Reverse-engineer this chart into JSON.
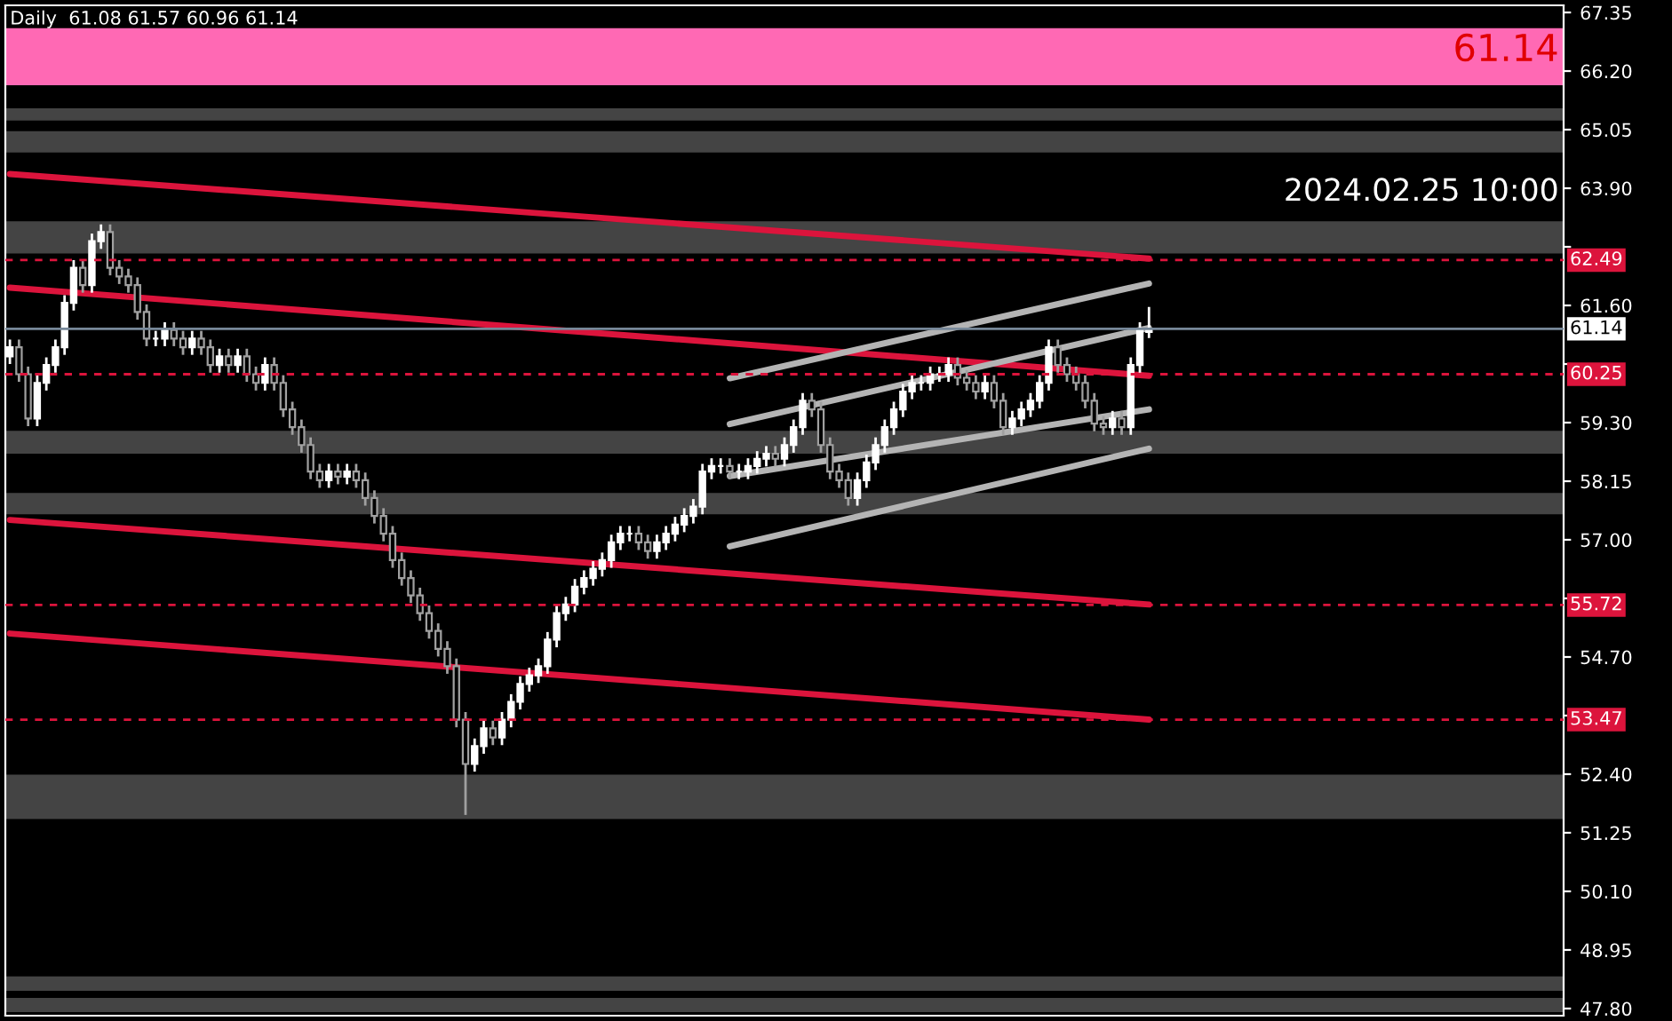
{
  "chart_data": {
    "type": "candlestick",
    "title": "Daily  61.08 61.57 60.96 61.14",
    "annotations": [
      "61.14",
      "2024.02.25 10:00"
    ],
    "categories": [
      null,
      null,
      null,
      null,
      null,
      null,
      null,
      null,
      null,
      null,
      null,
      null,
      null,
      null,
      null,
      null,
      null,
      null,
      null,
      null,
      null,
      null,
      null,
      null,
      null,
      null,
      null,
      null,
      null,
      null,
      null,
      null,
      null,
      null,
      null,
      null,
      null,
      null,
      null,
      null,
      null,
      null,
      null,
      null,
      null,
      null,
      null,
      null,
      null,
      null,
      null,
      null,
      null,
      null,
      null,
      null,
      null,
      null,
      null,
      null,
      null,
      null,
      null,
      null,
      null,
      null,
      null,
      null,
      null,
      null,
      null,
      null,
      null,
      null,
      null,
      null,
      null,
      null,
      null,
      null,
      null,
      null,
      null,
      null,
      null,
      null,
      null,
      null,
      null,
      null,
      null,
      null,
      null,
      null,
      null,
      null,
      null,
      null,
      null,
      null,
      null,
      null,
      null,
      null,
      null,
      null,
      null,
      null,
      null,
      null,
      null,
      null,
      null,
      null,
      null,
      null,
      null,
      null,
      null,
      null,
      null,
      null,
      null,
      null,
      null,
      null,
      null,
      null,
      null,
      null,
      null,
      null,
      null,
      null,
      null,
      null,
      null,
      null,
      null,
      null,
      null,
      null,
      null,
      null,
      null,
      null,
      null,
      null,
      null,
      null,
      null,
      null,
      null,
      null,
      null,
      null,
      null,
      null,
      null,
      null,
      null,
      null,
      null,
      null,
      null,
      null,
      null,
      null,
      null,
      null,
      null
    ],
    "ohlc": [
      [
        60.6,
        60.93,
        60.45,
        60.78
      ],
      [
        60.78,
        60.93,
        60.1,
        60.25
      ],
      [
        60.25,
        60.4,
        59.23,
        59.38
      ],
      [
        59.38,
        60.23,
        59.23,
        60.08
      ],
      [
        60.08,
        60.58,
        59.93,
        60.43
      ],
      [
        60.43,
        60.93,
        60.28,
        60.78
      ],
      [
        60.78,
        61.8,
        60.63,
        61.65
      ],
      [
        61.65,
        62.49,
        61.5,
        62.34
      ],
      [
        62.34,
        62.49,
        61.85,
        62.0
      ],
      [
        62.0,
        63.01,
        61.85,
        62.86
      ],
      [
        62.86,
        63.19,
        62.71,
        63.04
      ],
      [
        63.04,
        63.19,
        62.19,
        62.34
      ],
      [
        62.34,
        62.49,
        62.02,
        62.17
      ],
      [
        62.17,
        62.32,
        61.85,
        62.0
      ],
      [
        62.0,
        62.15,
        61.32,
        61.47
      ],
      [
        61.47,
        61.62,
        60.8,
        60.95
      ],
      [
        60.95,
        61.1,
        60.8,
        60.95
      ],
      [
        60.95,
        61.27,
        60.8,
        61.12
      ],
      [
        61.12,
        61.27,
        60.8,
        60.95
      ],
      [
        60.95,
        61.1,
        60.63,
        60.78
      ],
      [
        60.78,
        61.1,
        60.63,
        60.95
      ],
      [
        60.95,
        61.1,
        60.63,
        60.78
      ],
      [
        60.78,
        60.93,
        60.28,
        60.43
      ],
      [
        60.43,
        60.75,
        60.28,
        60.6
      ],
      [
        60.6,
        60.75,
        60.28,
        60.43
      ],
      [
        60.43,
        60.75,
        60.28,
        60.6
      ],
      [
        60.6,
        60.75,
        60.1,
        60.25
      ],
      [
        60.25,
        60.4,
        59.93,
        60.08
      ],
      [
        60.08,
        60.58,
        59.93,
        60.43
      ],
      [
        60.43,
        60.58,
        59.93,
        60.08
      ],
      [
        60.08,
        60.23,
        59.41,
        59.56
      ],
      [
        59.56,
        59.71,
        59.06,
        59.21
      ],
      [
        59.21,
        59.36,
        58.71,
        58.86
      ],
      [
        58.86,
        59.01,
        58.19,
        58.34
      ],
      [
        58.34,
        58.49,
        58.02,
        58.17
      ],
      [
        58.17,
        58.49,
        58.02,
        58.34
      ],
      [
        58.34,
        58.49,
        58.09,
        58.24
      ],
      [
        58.24,
        58.49,
        58.09,
        58.34
      ],
      [
        58.34,
        58.49,
        58.02,
        58.17
      ],
      [
        58.17,
        58.32,
        57.67,
        57.82
      ],
      [
        57.82,
        57.97,
        57.32,
        57.47
      ],
      [
        57.47,
        57.62,
        56.97,
        57.12
      ],
      [
        57.12,
        57.27,
        56.45,
        56.6
      ],
      [
        56.6,
        56.75,
        56.1,
        56.25
      ],
      [
        56.25,
        56.4,
        55.76,
        55.91
      ],
      [
        55.91,
        56.06,
        55.41,
        55.56
      ],
      [
        55.56,
        55.71,
        55.06,
        55.21
      ],
      [
        55.21,
        55.36,
        54.71,
        54.86
      ],
      [
        54.86,
        55.01,
        54.37,
        54.52
      ],
      [
        54.52,
        54.67,
        53.32,
        53.47
      ],
      [
        53.47,
        53.62,
        51.6,
        52.6
      ],
      [
        52.6,
        53.1,
        52.45,
        52.95
      ],
      [
        52.95,
        53.45,
        52.8,
        53.3
      ],
      [
        53.3,
        53.45,
        52.97,
        53.12
      ],
      [
        53.12,
        53.62,
        52.97,
        53.47
      ],
      [
        53.47,
        53.97,
        53.32,
        53.82
      ],
      [
        53.82,
        54.32,
        53.67,
        54.17
      ],
      [
        54.17,
        54.49,
        54.02,
        54.34
      ],
      [
        54.34,
        54.67,
        54.19,
        54.52
      ],
      [
        54.52,
        55.19,
        54.37,
        55.04
      ],
      [
        55.04,
        55.71,
        54.89,
        55.56
      ],
      [
        55.56,
        55.88,
        55.41,
        55.73
      ],
      [
        55.73,
        56.23,
        55.58,
        56.08
      ],
      [
        56.08,
        56.4,
        55.93,
        56.25
      ],
      [
        56.25,
        56.58,
        56.1,
        56.43
      ],
      [
        56.43,
        56.75,
        56.28,
        56.6
      ],
      [
        56.6,
        57.1,
        56.45,
        56.95
      ],
      [
        56.95,
        57.27,
        56.8,
        57.12
      ],
      [
        57.12,
        57.27,
        56.97,
        57.12
      ],
      [
        57.12,
        57.27,
        56.8,
        56.95
      ],
      [
        56.95,
        57.1,
        56.63,
        56.78
      ],
      [
        56.78,
        57.1,
        56.63,
        56.95
      ],
      [
        56.95,
        57.27,
        56.8,
        57.12
      ],
      [
        57.12,
        57.45,
        56.97,
        57.3
      ],
      [
        57.3,
        57.62,
        57.15,
        57.47
      ],
      [
        57.47,
        57.8,
        57.32,
        57.65
      ],
      [
        57.65,
        58.49,
        57.5,
        58.34
      ],
      [
        58.34,
        58.6,
        58.19,
        58.45
      ],
      [
        58.45,
        58.6,
        58.3,
        58.45
      ],
      [
        58.45,
        58.6,
        58.19,
        58.34
      ],
      [
        58.34,
        58.49,
        58.19,
        58.34
      ],
      [
        58.34,
        58.6,
        58.19,
        58.45
      ],
      [
        58.45,
        58.74,
        58.3,
        58.59
      ],
      [
        58.59,
        58.84,
        58.44,
        58.69
      ],
      [
        58.69,
        58.84,
        58.44,
        58.59
      ],
      [
        58.59,
        59.01,
        58.44,
        58.86
      ],
      [
        58.86,
        59.36,
        58.71,
        59.21
      ],
      [
        59.21,
        59.88,
        59.06,
        59.73
      ],
      [
        59.73,
        59.88,
        59.41,
        59.56
      ],
      [
        59.56,
        59.71,
        58.71,
        58.86
      ],
      [
        58.86,
        59.01,
        58.19,
        58.34
      ],
      [
        58.34,
        58.49,
        58.02,
        58.17
      ],
      [
        58.17,
        58.32,
        57.67,
        57.82
      ],
      [
        57.82,
        58.32,
        57.67,
        58.17
      ],
      [
        58.17,
        58.67,
        58.02,
        58.52
      ],
      [
        58.52,
        59.01,
        58.37,
        58.86
      ],
      [
        58.86,
        59.36,
        58.71,
        59.21
      ],
      [
        59.21,
        59.71,
        59.06,
        59.56
      ],
      [
        59.56,
        60.06,
        59.41,
        59.91
      ],
      [
        59.91,
        60.23,
        59.76,
        60.08
      ],
      [
        60.08,
        60.23,
        59.93,
        60.08
      ],
      [
        60.08,
        60.4,
        59.93,
        60.25
      ],
      [
        60.25,
        60.4,
        60.1,
        60.25
      ],
      [
        60.25,
        60.58,
        60.1,
        60.43
      ],
      [
        60.43,
        60.58,
        60.03,
        60.18
      ],
      [
        60.18,
        60.33,
        59.93,
        60.08
      ],
      [
        60.08,
        60.23,
        59.76,
        59.91
      ],
      [
        59.91,
        60.23,
        59.76,
        60.08
      ],
      [
        60.08,
        60.23,
        59.58,
        59.73
      ],
      [
        59.73,
        59.88,
        59.06,
        59.21
      ],
      [
        59.21,
        59.53,
        59.06,
        59.38
      ],
      [
        59.38,
        59.71,
        59.23,
        59.56
      ],
      [
        59.56,
        59.88,
        59.41,
        59.73
      ],
      [
        59.73,
        60.23,
        59.58,
        60.08
      ],
      [
        60.08,
        60.93,
        59.93,
        60.78
      ],
      [
        60.78,
        60.93,
        60.28,
        60.43
      ],
      [
        60.43,
        60.58,
        60.1,
        60.25
      ],
      [
        60.25,
        60.4,
        59.93,
        60.08
      ],
      [
        60.08,
        60.23,
        59.58,
        59.73
      ],
      [
        59.73,
        59.88,
        59.13,
        59.28
      ],
      [
        59.28,
        59.43,
        59.06,
        59.21
      ],
      [
        59.21,
        59.53,
        59.06,
        59.38
      ],
      [
        59.38,
        59.53,
        59.06,
        59.21
      ],
      [
        59.21,
        60.58,
        59.06,
        60.43
      ],
      [
        60.43,
        61.27,
        60.28,
        61.12
      ],
      [
        61.08,
        61.57,
        60.96,
        61.14
      ],
      null,
      null,
      null,
      null,
      null,
      null,
      null,
      null,
      null,
      null,
      null,
      null,
      null,
      null,
      null,
      null,
      null,
      null,
      null,
      null,
      null,
      null,
      null,
      null,
      null,
      null,
      null,
      null,
      null,
      null,
      null,
      null,
      null,
      null,
      null,
      null,
      null,
      null,
      null,
      null,
      null,
      null,
      null,
      null,
      null
    ],
    "series": [
      {
        "type": "line",
        "color": "#dc143c",
        "values": [
          64.18,
          null,
          null,
          null,
          null,
          null,
          null,
          null,
          null,
          null,
          null,
          null,
          null,
          null,
          null,
          null,
          null,
          null,
          null,
          null,
          null,
          null,
          null,
          null,
          null,
          null,
          null,
          null,
          null,
          null,
          null,
          null,
          null,
          null,
          null,
          null,
          null,
          null,
          null,
          null,
          null,
          null,
          null,
          null,
          null,
          null,
          null,
          null,
          null,
          null,
          null,
          null,
          null,
          null,
          null,
          null,
          null,
          null,
          null,
          null,
          null,
          null,
          null,
          null,
          null,
          null,
          null,
          null,
          null,
          null,
          null,
          null,
          null,
          null,
          null,
          null,
          null,
          null,
          null,
          null,
          null,
          null,
          null,
          null,
          null,
          null,
          null,
          null,
          null,
          null,
          null,
          null,
          null,
          null,
          null,
          null,
          null,
          null,
          null,
          null,
          null,
          null,
          null,
          null,
          null,
          null,
          null,
          null,
          null,
          null,
          null,
          null,
          null,
          null,
          null,
          null,
          null,
          null,
          null,
          null,
          null,
          null,
          null,
          null,
          null,
          62.52,
          null,
          null,
          null,
          null,
          null,
          null,
          null,
          null,
          null,
          null,
          null,
          null,
          null,
          null,
          null,
          null,
          null,
          null,
          null,
          null,
          null,
          null,
          null,
          null,
          null,
          null,
          null,
          null,
          null,
          null,
          null,
          null,
          null,
          null,
          null,
          null,
          null,
          null,
          null,
          null,
          null,
          null,
          null,
          null,
          null
        ]
      },
      {
        "type": "line",
        "color": "#dc143c",
        "values": [
          61.95,
          null,
          null,
          null,
          null,
          null,
          null,
          null,
          null,
          null,
          null,
          null,
          null,
          null,
          null,
          null,
          null,
          null,
          null,
          null,
          null,
          null,
          null,
          null,
          null,
          null,
          null,
          null,
          null,
          null,
          null,
          null,
          null,
          null,
          null,
          null,
          null,
          null,
          null,
          null,
          null,
          null,
          null,
          null,
          null,
          null,
          null,
          null,
          null,
          null,
          null,
          null,
          null,
          null,
          null,
          null,
          null,
          null,
          null,
          null,
          null,
          null,
          null,
          null,
          null,
          null,
          null,
          null,
          null,
          null,
          null,
          null,
          null,
          null,
          null,
          null,
          null,
          null,
          null,
          null,
          null,
          null,
          null,
          null,
          null,
          null,
          null,
          null,
          null,
          null,
          null,
          null,
          null,
          null,
          null,
          null,
          null,
          null,
          null,
          null,
          null,
          null,
          null,
          null,
          null,
          null,
          null,
          null,
          null,
          null,
          null,
          null,
          null,
          null,
          null,
          null,
          null,
          null,
          null,
          null,
          null,
          null,
          null,
          null,
          null,
          60.22,
          null,
          null,
          null,
          null,
          null,
          null,
          null,
          null,
          null,
          null,
          null,
          null,
          null,
          null,
          null,
          null,
          null,
          null,
          null,
          null,
          null,
          null,
          null,
          null,
          null,
          null,
          null,
          null,
          null,
          null,
          null,
          null,
          null,
          null,
          null,
          null,
          null,
          null,
          null,
          null,
          null,
          null,
          null,
          null,
          null
        ]
      },
      {
        "type": "line",
        "color": "#dc143c",
        "values": [
          57.39,
          null,
          null,
          null,
          null,
          null,
          null,
          null,
          null,
          null,
          null,
          null,
          null,
          null,
          null,
          null,
          null,
          null,
          null,
          null,
          null,
          null,
          null,
          null,
          null,
          null,
          null,
          null,
          null,
          null,
          null,
          null,
          null,
          null,
          null,
          null,
          null,
          null,
          null,
          null,
          null,
          null,
          null,
          null,
          null,
          null,
          null,
          null,
          null,
          null,
          null,
          null,
          null,
          null,
          null,
          null,
          null,
          null,
          null,
          null,
          null,
          null,
          null,
          null,
          null,
          null,
          null,
          null,
          null,
          null,
          null,
          null,
          null,
          null,
          null,
          null,
          null,
          null,
          null,
          null,
          null,
          null,
          null,
          null,
          null,
          null,
          null,
          null,
          null,
          null,
          null,
          null,
          null,
          null,
          null,
          null,
          null,
          null,
          null,
          null,
          null,
          null,
          null,
          null,
          null,
          null,
          null,
          null,
          null,
          null,
          null,
          null,
          null,
          null,
          null,
          null,
          null,
          null,
          null,
          null,
          null,
          null,
          null,
          null,
          null,
          55.73,
          null,
          null,
          null,
          null,
          null,
          null,
          null,
          null,
          null,
          null,
          null,
          null,
          null,
          null,
          null,
          null,
          null,
          null,
          null,
          null,
          null,
          null,
          null,
          null,
          null,
          null,
          null,
          null,
          null,
          null,
          null,
          null,
          null,
          null,
          null,
          null,
          null,
          null,
          null,
          null,
          null,
          null,
          null,
          null,
          null
        ]
      },
      {
        "type": "line",
        "color": "#dc143c",
        "values": [
          55.16,
          null,
          null,
          null,
          null,
          null,
          null,
          null,
          null,
          null,
          null,
          null,
          null,
          null,
          null,
          null,
          null,
          null,
          null,
          null,
          null,
          null,
          null,
          null,
          null,
          null,
          null,
          null,
          null,
          null,
          null,
          null,
          null,
          null,
          null,
          null,
          null,
          null,
          null,
          null,
          null,
          null,
          null,
          null,
          null,
          null,
          null,
          null,
          null,
          null,
          null,
          null,
          null,
          null,
          null,
          null,
          null,
          null,
          null,
          null,
          null,
          null,
          null,
          null,
          null,
          null,
          null,
          null,
          null,
          null,
          null,
          null,
          null,
          null,
          null,
          null,
          null,
          null,
          null,
          null,
          null,
          null,
          null,
          null,
          null,
          null,
          null,
          null,
          null,
          null,
          null,
          null,
          null,
          null,
          null,
          null,
          null,
          null,
          null,
          null,
          null,
          null,
          null,
          null,
          null,
          null,
          null,
          null,
          null,
          null,
          null,
          null,
          null,
          null,
          null,
          null,
          null,
          null,
          null,
          null,
          null,
          null,
          null,
          null,
          null,
          53.47,
          null,
          null,
          null,
          null,
          null,
          null,
          null,
          null,
          null,
          null,
          null,
          null,
          null,
          null,
          null,
          null,
          null,
          null,
          null,
          null,
          null,
          null,
          null,
          null,
          null,
          null,
          null,
          null,
          null,
          null,
          null,
          null,
          null,
          null,
          null,
          null,
          null,
          null,
          null,
          null,
          null,
          null,
          null,
          null,
          null
        ]
      },
      {
        "type": "line",
        "color": "#b4b4b4",
        "values": [
          null,
          null,
          null,
          null,
          null,
          null,
          null,
          null,
          null,
          null,
          null,
          null,
          null,
          null,
          null,
          null,
          null,
          null,
          null,
          null,
          null,
          null,
          null,
          null,
          null,
          null,
          null,
          null,
          null,
          null,
          null,
          null,
          null,
          null,
          null,
          null,
          null,
          null,
          null,
          null,
          null,
          null,
          null,
          null,
          null,
          null,
          null,
          null,
          null,
          null,
          null,
          null,
          null,
          null,
          null,
          null,
          null,
          null,
          null,
          null,
          null,
          null,
          null,
          null,
          null,
          null,
          null,
          null,
          null,
          null,
          null,
          null,
          null,
          null,
          null,
          null,
          null,
          null,
          null,
          60.17,
          null,
          null,
          null,
          null,
          null,
          null,
          null,
          null,
          null,
          null,
          null,
          null,
          null,
          null,
          null,
          null,
          null,
          null,
          null,
          null,
          null,
          null,
          null,
          null,
          null,
          null,
          null,
          null,
          null,
          null,
          null,
          null,
          null,
          null,
          null,
          null,
          null,
          null,
          null,
          null,
          null,
          null,
          null,
          null,
          null,
          62.03,
          null,
          null,
          null,
          null,
          null,
          null,
          null,
          null,
          null,
          null,
          null,
          null,
          null,
          null,
          null,
          null,
          null,
          null,
          null,
          null,
          null,
          null,
          null,
          null,
          null,
          null,
          null,
          null,
          null,
          null,
          null,
          null,
          null,
          null,
          null,
          null,
          null,
          null,
          null,
          null,
          null,
          null,
          null,
          null,
          null
        ]
      },
      {
        "type": "line",
        "color": "#b4b4b4",
        "values": [
          null,
          null,
          null,
          null,
          null,
          null,
          null,
          null,
          null,
          null,
          null,
          null,
          null,
          null,
          null,
          null,
          null,
          null,
          null,
          null,
          null,
          null,
          null,
          null,
          null,
          null,
          null,
          null,
          null,
          null,
          null,
          null,
          null,
          null,
          null,
          null,
          null,
          null,
          null,
          null,
          null,
          null,
          null,
          null,
          null,
          null,
          null,
          null,
          null,
          null,
          null,
          null,
          null,
          null,
          null,
          null,
          null,
          null,
          null,
          null,
          null,
          null,
          null,
          null,
          null,
          null,
          null,
          null,
          null,
          null,
          null,
          null,
          null,
          null,
          null,
          null,
          null,
          null,
          null,
          59.27,
          null,
          null,
          null,
          null,
          null,
          null,
          null,
          null,
          null,
          null,
          null,
          null,
          null,
          null,
          null,
          null,
          null,
          null,
          null,
          null,
          null,
          null,
          null,
          null,
          null,
          null,
          null,
          null,
          null,
          null,
          null,
          null,
          null,
          null,
          null,
          null,
          null,
          null,
          null,
          null,
          null,
          null,
          null,
          null,
          null,
          61.16,
          null,
          null,
          null,
          null,
          null,
          null,
          null,
          null,
          null,
          null,
          null,
          null,
          null,
          null,
          null,
          null,
          null,
          null,
          null,
          null,
          null,
          null,
          null,
          null,
          null,
          null,
          null,
          null,
          null,
          null,
          null,
          null,
          null,
          null,
          null,
          null,
          null,
          null,
          null,
          null,
          null,
          null,
          null,
          null,
          null
        ]
      },
      {
        "type": "line",
        "color": "#b4b4b4",
        "values": [
          null,
          null,
          null,
          null,
          null,
          null,
          null,
          null,
          null,
          null,
          null,
          null,
          null,
          null,
          null,
          null,
          null,
          null,
          null,
          null,
          null,
          null,
          null,
          null,
          null,
          null,
          null,
          null,
          null,
          null,
          null,
          null,
          null,
          null,
          null,
          null,
          null,
          null,
          null,
          null,
          null,
          null,
          null,
          null,
          null,
          null,
          null,
          null,
          null,
          null,
          null,
          null,
          null,
          null,
          null,
          null,
          null,
          null,
          null,
          null,
          null,
          null,
          null,
          null,
          null,
          null,
          null,
          null,
          null,
          null,
          null,
          null,
          null,
          null,
          null,
          null,
          null,
          null,
          null,
          58.25,
          null,
          null,
          null,
          null,
          null,
          null,
          null,
          null,
          null,
          null,
          null,
          null,
          null,
          null,
          null,
          null,
          null,
          null,
          null,
          null,
          null,
          null,
          null,
          null,
          null,
          null,
          null,
          null,
          null,
          null,
          null,
          null,
          null,
          null,
          null,
          null,
          null,
          null,
          null,
          null,
          null,
          null,
          null,
          null,
          null,
          59.56,
          null,
          null,
          null,
          null,
          null,
          null,
          null,
          null,
          null,
          null,
          null,
          null,
          null,
          null,
          null,
          null,
          null,
          null,
          null,
          null,
          null,
          null,
          null,
          null,
          null,
          null,
          null,
          null,
          null,
          null,
          null,
          null,
          null,
          null,
          null,
          null,
          null,
          null,
          null,
          null,
          null,
          null,
          null,
          null,
          null
        ]
      },
      {
        "type": "line",
        "color": "#b4b4b4",
        "values": [
          null,
          null,
          null,
          null,
          null,
          null,
          null,
          null,
          null,
          null,
          null,
          null,
          null,
          null,
          null,
          null,
          null,
          null,
          null,
          null,
          null,
          null,
          null,
          null,
          null,
          null,
          null,
          null,
          null,
          null,
          null,
          null,
          null,
          null,
          null,
          null,
          null,
          null,
          null,
          null,
          null,
          null,
          null,
          null,
          null,
          null,
          null,
          null,
          null,
          null,
          null,
          null,
          null,
          null,
          null,
          null,
          null,
          null,
          null,
          null,
          null,
          null,
          null,
          null,
          null,
          null,
          null,
          null,
          null,
          null,
          null,
          null,
          null,
          null,
          null,
          null,
          null,
          null,
          null,
          56.87,
          null,
          null,
          null,
          null,
          null,
          null,
          null,
          null,
          null,
          null,
          null,
          null,
          null,
          null,
          null,
          null,
          null,
          null,
          null,
          null,
          null,
          null,
          null,
          null,
          null,
          null,
          null,
          null,
          null,
          null,
          null,
          null,
          null,
          null,
          null,
          null,
          null,
          null,
          null,
          null,
          null,
          null,
          null,
          null,
          null,
          58.79,
          null,
          null,
          null,
          null,
          null,
          null,
          null,
          null,
          null,
          null,
          null,
          null,
          null,
          null,
          null,
          null,
          null,
          null,
          null,
          null,
          null,
          null,
          null,
          null,
          null,
          null,
          null,
          null,
          null,
          null,
          null,
          null,
          null,
          null,
          null,
          null,
          null,
          null,
          null,
          null,
          null,
          null,
          null,
          null,
          null
        ]
      }
    ],
    "ref_lines": [
      {
        "axis": "y",
        "value": 62.49,
        "label": "62.49",
        "color": "#dc143c",
        "line_style": "dashed"
      },
      {
        "axis": "y",
        "value": 61.14,
        "label": "61.14",
        "color": "#778899",
        "line_style": "solid"
      },
      {
        "axis": "y",
        "value": 60.25,
        "label": "60.25",
        "color": "#dc143c",
        "line_style": "dashed"
      },
      {
        "axis": "y",
        "value": 55.72,
        "label": "55.72",
        "color": "#dc143c",
        "line_style": "dashed"
      },
      {
        "axis": "y",
        "value": 53.47,
        "label": "53.47",
        "color": "#dc143c",
        "line_style": "dashed"
      }
    ],
    "bands": [
      {
        "axis": "y",
        "from": 65.92,
        "to": 67.04,
        "color": "#ff69b4"
      },
      {
        "axis": "y",
        "from": 65.23,
        "to": 65.47,
        "color": "#444444"
      },
      {
        "axis": "y",
        "from": 64.6,
        "to": 65.02,
        "color": "#444444"
      },
      {
        "axis": "y",
        "from": 62.62,
        "to": 63.25,
        "color": "#444444"
      },
      {
        "axis": "y",
        "from": 58.69,
        "to": 59.14,
        "color": "#444444"
      },
      {
        "axis": "y",
        "from": 57.5,
        "to": 57.92,
        "color": "#444444"
      },
      {
        "axis": "y",
        "from": 51.52,
        "to": 52.39,
        "color": "#444444"
      },
      {
        "axis": "y",
        "from": 48.15,
        "to": 48.43,
        "color": "#444444"
      },
      {
        "axis": "y",
        "from": 47.73,
        "to": 48.01,
        "color": "#444444"
      }
    ],
    "ylim": [
      47.66,
      67.49
    ],
    "yticks": [
      67.35,
      {
        "value": 66.2,
        "label": "66.20"
      },
      65.05,
      {
        "value": 63.9,
        "label": "63.90"
      },
      {
        "value": 62.75,
        "label": null
      },
      {
        "value": 61.6,
        "label": "61.60"
      },
      {
        "value": 60.45,
        "label": null
      },
      {
        "value": 59.3,
        "label": "59.30"
      },
      58.15,
      {
        "value": 57.0,
        "label": "57.00"
      },
      {
        "value": 55.85,
        "label": null
      },
      {
        "value": 54.7,
        "label": "54.70"
      },
      {
        "value": 53.55,
        "label": null
      },
      {
        "value": 52.4,
        "label": "52.40"
      },
      51.25,
      {
        "value": 50.1,
        "label": "50.10"
      },
      48.95,
      {
        "value": 47.8,
        "label": "47.80"
      }
    ],
    "grid": false,
    "legend": false
  }
}
